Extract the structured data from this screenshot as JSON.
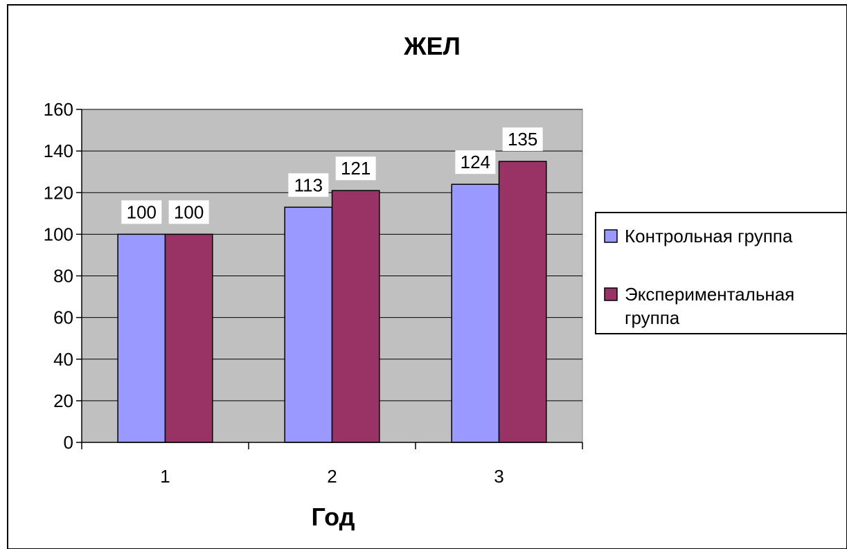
{
  "chart_data": {
    "type": "bar",
    "title": "ЖЕЛ",
    "xlabel": "Год",
    "ylabel": "",
    "categories": [
      "1",
      "2",
      "3"
    ],
    "series": [
      {
        "name": "Контрольная группа",
        "values": [
          100,
          113,
          124
        ],
        "color": "#9999ff"
      },
      {
        "name": "Экспериментальная группа",
        "values": [
          100,
          121,
          135
        ],
        "color": "#993366"
      }
    ],
    "ylim": [
      0,
      160
    ],
    "yticks": [
      "0",
      "20",
      "40",
      "60",
      "80",
      "100",
      "120",
      "140",
      "160"
    ],
    "data_labels": [
      [
        "100",
        "113",
        "124"
      ],
      [
        "100",
        "121",
        "135"
      ]
    ],
    "legend_labels": [
      [
        "Контрольная группа"
      ],
      [
        "Экспериментальная",
        "группа"
      ]
    ],
    "grid": true,
    "legend_position": "right",
    "plot_background": "#c0c0c0"
  }
}
